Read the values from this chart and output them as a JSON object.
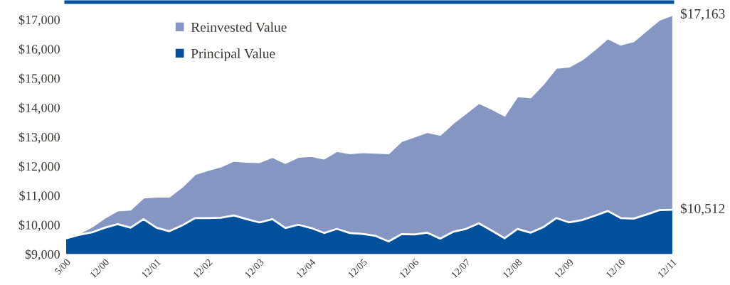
{
  "chart_data": {
    "type": "area",
    "categories": [
      "5/00",
      null,
      null,
      "12/00",
      null,
      null,
      null,
      "12/01",
      null,
      null,
      null,
      "12/02",
      null,
      null,
      null,
      "12/03",
      null,
      null,
      null,
      "12/04",
      null,
      null,
      null,
      "12/05",
      null,
      null,
      null,
      "12/06",
      null,
      null,
      null,
      "12/07",
      null,
      null,
      null,
      "12/08",
      null,
      null,
      null,
      "12/09",
      null,
      null,
      null,
      "12/10",
      null,
      null,
      null,
      "12/11"
    ],
    "series": [
      {
        "name": "Reinvested Value",
        "color": "#8696c2",
        "values": [
          9540,
          9700,
          9940,
          10240,
          10490,
          10520,
          10930,
          10960,
          10960,
          11300,
          11730,
          11870,
          11990,
          12190,
          12150,
          12140,
          12320,
          12110,
          12320,
          12350,
          12260,
          12520,
          12440,
          12480,
          12460,
          12440,
          12860,
          13010,
          13170,
          13070,
          13470,
          13810,
          14160,
          13960,
          13730,
          14390,
          14350,
          14810,
          15360,
          15400,
          15640,
          15990,
          16370,
          16150,
          16270,
          16640,
          17000,
          17163
        ]
      },
      {
        "name": "Principal Value",
        "color": "#00509c",
        "values": [
          9540,
          9660,
          9740,
          9900,
          10020,
          9900,
          10190,
          9900,
          9780,
          9980,
          10230,
          10230,
          10240,
          10320,
          10190,
          10080,
          10190,
          9890,
          10000,
          9890,
          9720,
          9860,
          9720,
          9690,
          9620,
          9430,
          9680,
          9670,
          9730,
          9530,
          9760,
          9860,
          10050,
          9800,
          9540,
          9860,
          9730,
          9920,
          10230,
          10080,
          10160,
          10310,
          10470,
          10230,
          10210,
          10350,
          10500,
          10512
        ]
      }
    ],
    "ylim": [
      9000,
      17600
    ],
    "yticks": [
      {
        "value": 9000,
        "label": "$9,000"
      },
      {
        "value": 10000,
        "label": "$10,000"
      },
      {
        "value": 11000,
        "label": "$11,000"
      },
      {
        "value": 12000,
        "label": "$12,000"
      },
      {
        "value": 13000,
        "label": "$13,000"
      },
      {
        "value": 14000,
        "label": "$14,000"
      },
      {
        "value": 15000,
        "label": "$15,000"
      },
      {
        "value": 16000,
        "label": "$16,000"
      },
      {
        "value": 17000,
        "label": "$17,000"
      }
    ],
    "annotations": [
      {
        "text": "$17,163",
        "x": "12/11",
        "y": 17163
      },
      {
        "text": "$10,512",
        "x": "12/11",
        "y": 10512
      }
    ],
    "legend": "top left",
    "grid": false
  }
}
